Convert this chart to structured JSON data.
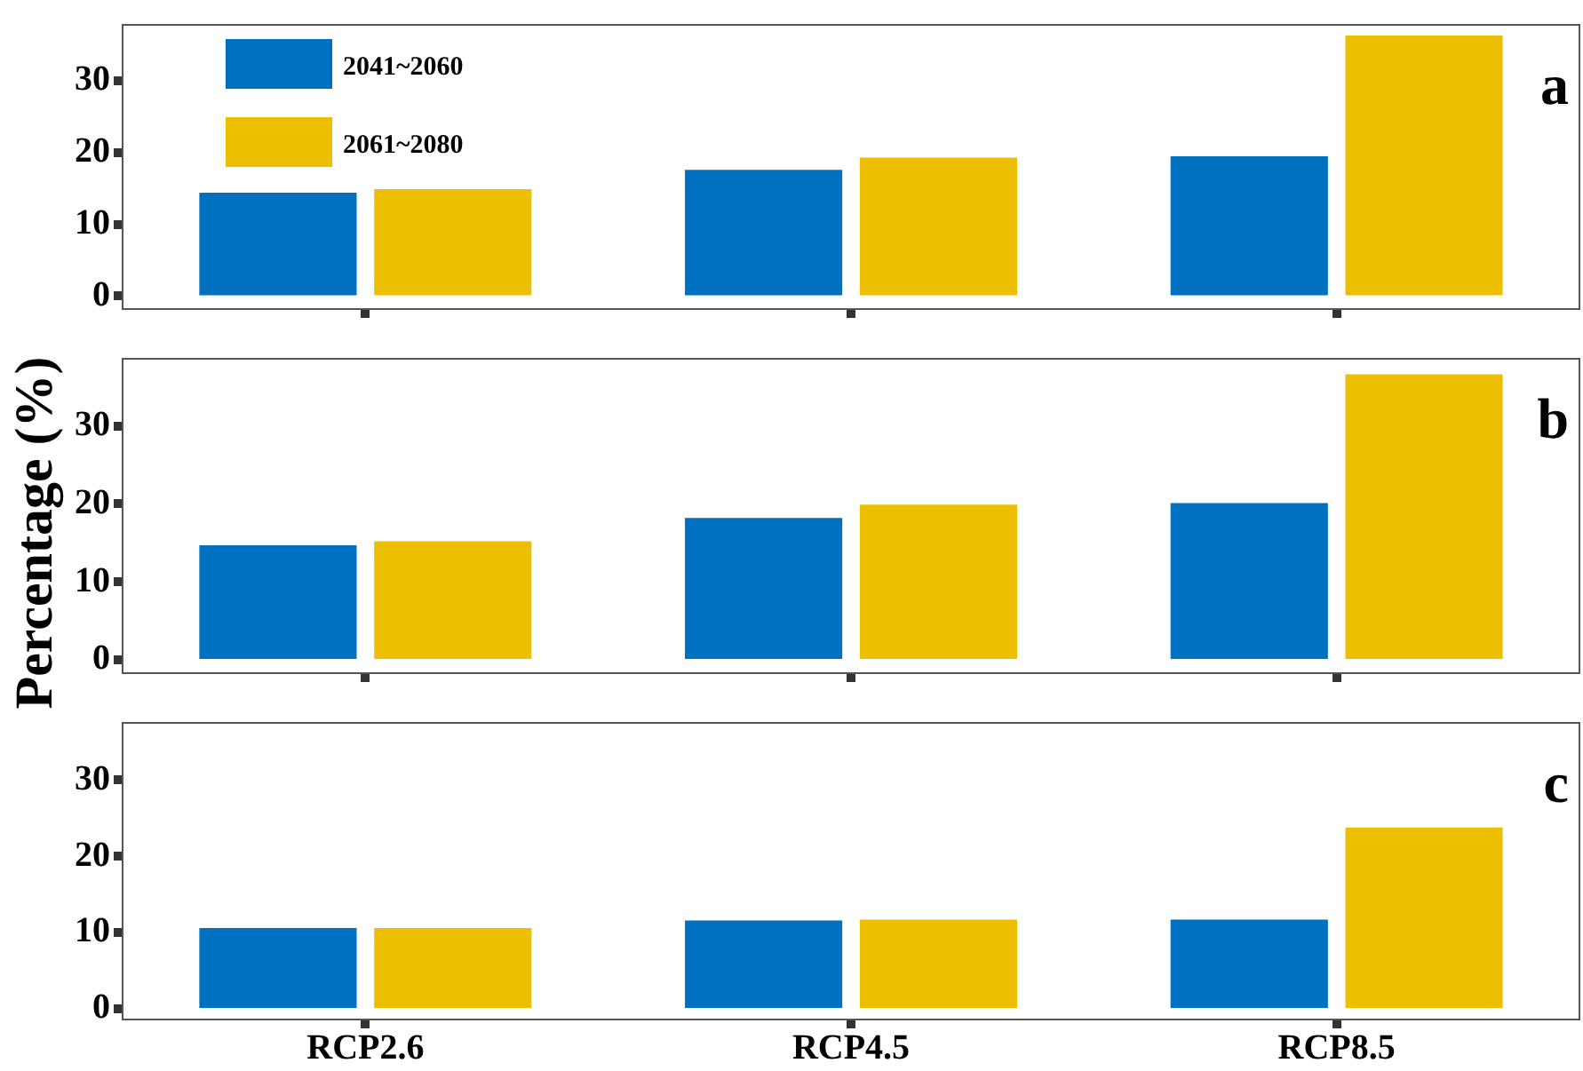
{
  "chart_data": [
    {
      "type": "bar",
      "categories": [
        null,
        null,
        null
      ],
      "ylabel": "Percentage (%)",
      "annotations": [
        "a"
      ],
      "legend": "top left",
      "tick_labels": "y",
      "grid": false,
      "ylim": [
        -1.8,
        37.8
      ],
      "yticks": [
        0,
        10,
        20,
        30
      ],
      "series": [
        {
          "name": "2041~2060",
          "color": "#0070c0",
          "values": [
            14.4,
            17.6,
            19.5
          ]
        },
        {
          "name": "2061~2080",
          "color": "#ecc000",
          "values": [
            14.9,
            19.3,
            36.3
          ]
        }
      ]
    },
    {
      "type": "bar",
      "categories": [
        null,
        null,
        null
      ],
      "annotations": [
        "b"
      ],
      "legend": false,
      "tick_labels": "y",
      "grid": false,
      "ylim": [
        -1.7,
        38.6
      ],
      "yticks": [
        0,
        10,
        20,
        30
      ],
      "series": [
        {
          "color": "#0070c0",
          "values": [
            14.7,
            18.2,
            20.1
          ]
        },
        {
          "color": "#ecc000",
          "values": [
            15.2,
            19.9,
            36.6
          ]
        }
      ]
    },
    {
      "type": "bar",
      "categories": [
        "RCP2.6",
        "RCP4.5",
        "RCP8.5"
      ],
      "annotations": [
        "c"
      ],
      "legend": false,
      "grid": false,
      "ylim": [
        -1.4,
        37.5
      ],
      "yticks": [
        0,
        10,
        20,
        30
      ],
      "series": [
        {
          "color": "#0070c0",
          "values": [
            10.6,
            11.6,
            11.7
          ]
        },
        {
          "color": "#ecc000",
          "values": [
            10.6,
            11.7,
            23.8
          ]
        }
      ]
    }
  ]
}
